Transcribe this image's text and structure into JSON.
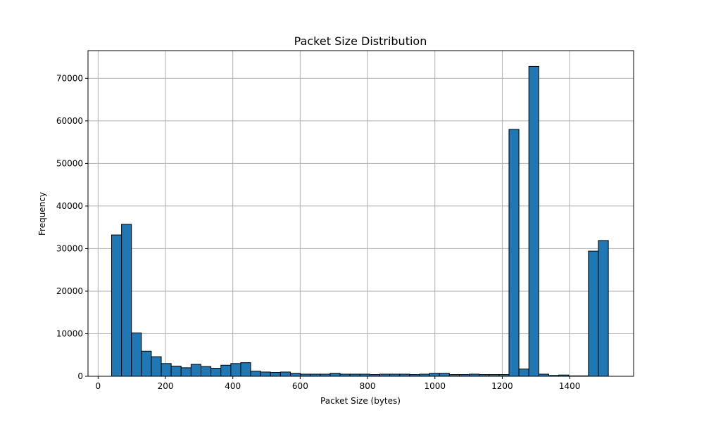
{
  "chart_data": {
    "type": "bar",
    "title": "Packet Size Distribution",
    "xlabel": "Packet Size (bytes)",
    "ylabel": "Frequency",
    "xlim": [
      -30,
      1590
    ],
    "ylim": [
      0,
      76500
    ],
    "grid": true,
    "bar_color": "#1f77b4",
    "edge_color": "#000000",
    "x_ticks": [
      0,
      200,
      400,
      600,
      800,
      1000,
      1200,
      1400
    ],
    "y_ticks": [
      0,
      10000,
      20000,
      30000,
      40000,
      50000,
      60000,
      70000
    ],
    "bin_start": 40,
    "bin_width": 29.5,
    "values": [
      33200,
      35700,
      10200,
      5900,
      4600,
      3000,
      2400,
      2000,
      2800,
      2300,
      1900,
      2600,
      3000,
      3200,
      1200,
      1000,
      900,
      1000,
      700,
      500,
      500,
      500,
      700,
      500,
      500,
      500,
      400,
      500,
      500,
      500,
      400,
      500,
      700,
      700,
      400,
      400,
      500,
      400,
      400,
      400,
      58000,
      1700,
      72800,
      500,
      200,
      300,
      100,
      100,
      29400,
      31900
    ]
  }
}
